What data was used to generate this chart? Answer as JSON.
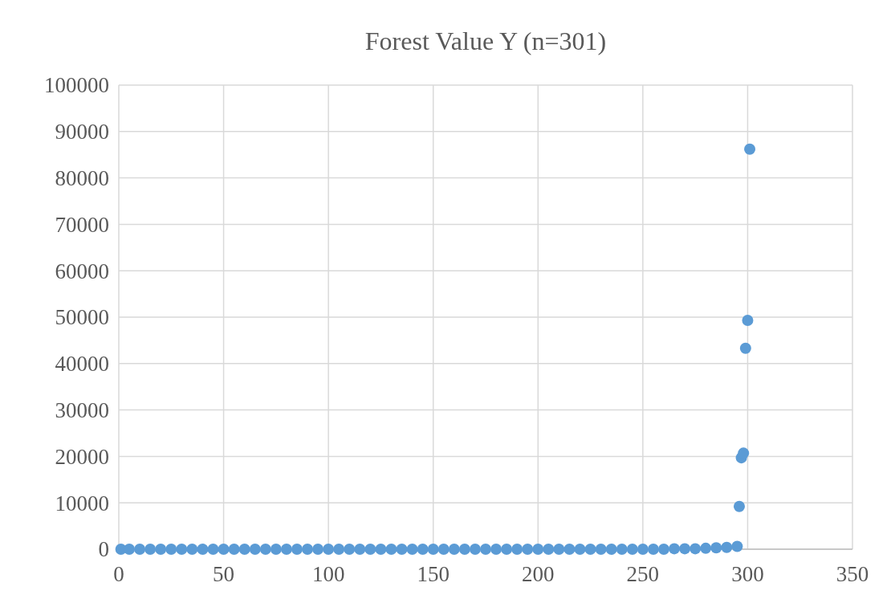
{
  "chart_data": {
    "type": "scatter",
    "title": "Forest Value Y (n=301)",
    "x": [
      1,
      5,
      10,
      15,
      20,
      25,
      30,
      35,
      40,
      45,
      50,
      55,
      60,
      65,
      70,
      75,
      80,
      85,
      90,
      95,
      100,
      105,
      110,
      115,
      120,
      125,
      130,
      135,
      140,
      145,
      150,
      155,
      160,
      165,
      170,
      175,
      180,
      185,
      190,
      195,
      200,
      205,
      210,
      215,
      220,
      225,
      230,
      235,
      240,
      245,
      250,
      255,
      260,
      265,
      270,
      275,
      280,
      285,
      290,
      295,
      296,
      297,
      298,
      299,
      300,
      301
    ],
    "series": [
      {
        "color": "#5b9bd5",
        "values": [
          0,
          0,
          0,
          0,
          0,
          0,
          0,
          0,
          0,
          0,
          0,
          0,
          0,
          0,
          0,
          0,
          0,
          0,
          0,
          0,
          0,
          0,
          0,
          0,
          0,
          0,
          0,
          0,
          0,
          0,
          0,
          0,
          0,
          0,
          0,
          0,
          0,
          0,
          0,
          0,
          0,
          0,
          0,
          0,
          0,
          0,
          0,
          0,
          0,
          0,
          0,
          0,
          0,
          100,
          100,
          100,
          200,
          300,
          400,
          600,
          9200,
          19700,
          20700,
          43300,
          49300,
          86200
        ]
      }
    ],
    "xlim": [
      0,
      350
    ],
    "xticks": [
      0,
      50,
      100,
      150,
      200,
      250,
      300,
      350
    ],
    "ylim": [
      0,
      100000
    ],
    "yticks": [
      0,
      10000,
      20000,
      30000,
      40000,
      50000,
      60000,
      70000,
      80000,
      90000,
      100000
    ],
    "grid": true,
    "marker": "circle"
  }
}
